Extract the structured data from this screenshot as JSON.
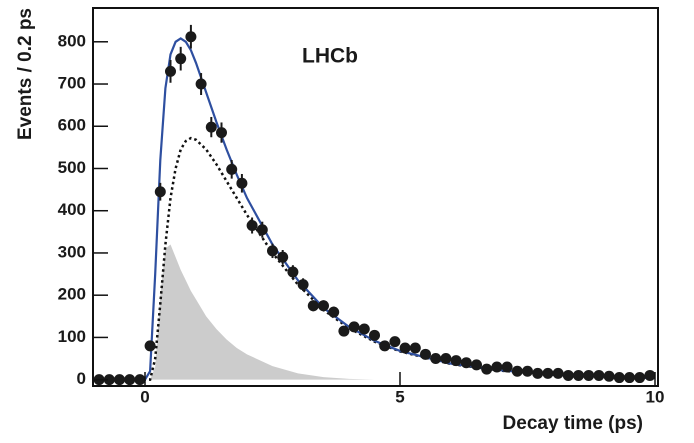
{
  "chart_data": {
    "type": "scatter",
    "annotation": "LHCb",
    "x_label": "Decay time (ps)",
    "y_label": "Events / 0.2 ps",
    "xlim": [
      -1,
      10
    ],
    "xticks": [
      0,
      5,
      10
    ],
    "ylim": [
      -15,
      880
    ],
    "yticks": [
      0,
      100,
      200,
      300,
      400,
      500,
      600,
      700,
      800
    ],
    "points": {
      "color": "#1a1a1a",
      "x": [
        -0.9,
        -0.7,
        -0.5,
        -0.3,
        -0.1,
        0.1,
        0.3,
        0.5,
        0.7,
        0.9,
        1.1,
        1.3,
        1.5,
        1.7,
        1.9,
        2.1,
        2.3,
        2.5,
        2.7,
        2.9,
        3.1,
        3.3,
        3.5,
        3.7,
        3.9,
        4.1,
        4.3,
        4.5,
        4.7,
        4.9,
        5.1,
        5.3,
        5.5,
        5.7,
        5.9,
        6.1,
        6.3,
        6.5,
        6.7,
        6.9,
        7.1,
        7.3,
        7.5,
        7.7,
        7.9,
        8.1,
        8.3,
        8.5,
        8.7,
        8.9,
        9.1,
        9.3,
        9.5,
        9.7,
        9.9
      ],
      "values": [
        0,
        0,
        0,
        0,
        0,
        80,
        445,
        730,
        760,
        812,
        700,
        598,
        585,
        498,
        465,
        365,
        355,
        305,
        290,
        255,
        225,
        175,
        175,
        160,
        115,
        125,
        120,
        105,
        80,
        90,
        75,
        75,
        60,
        50,
        50,
        45,
        40,
        35,
        25,
        30,
        30,
        20,
        20,
        15,
        15,
        15,
        10,
        10,
        10,
        10,
        8,
        5,
        5,
        5,
        10
      ],
      "errors": [
        2,
        2,
        2,
        2,
        2,
        9,
        21,
        27,
        28,
        28,
        26,
        24,
        24,
        22,
        22,
        19,
        19,
        17,
        17,
        16,
        15,
        13,
        13,
        13,
        11,
        11,
        11,
        10,
        9,
        9,
        9,
        9,
        8,
        7,
        7,
        7,
        6,
        6,
        5,
        5,
        5,
        4,
        4,
        4,
        4,
        4,
        3,
        3,
        3,
        3,
        3,
        2,
        2,
        2,
        3
      ]
    },
    "curve_x": [
      -1,
      0,
      0.1,
      0.2,
      0.3,
      0.4,
      0.5,
      0.6,
      0.7,
      0.8,
      0.9,
      1.0,
      1.2,
      1.4,
      1.6,
      1.8,
      2.0,
      2.5,
      3.0,
      3.5,
      4.0,
      4.5,
      5,
      6,
      7,
      8,
      9,
      10
    ],
    "series": [
      {
        "kind": "area",
        "color": "#cccccc",
        "values": [
          0,
          0,
          0,
          30,
          200,
          310,
          320,
          290,
          260,
          235,
          210,
          190,
          150,
          120,
          95,
          75,
          60,
          32,
          15,
          6,
          2,
          0,
          0,
          0,
          0,
          0,
          0,
          0
        ]
      },
      {
        "kind": "dotted",
        "color": "#111111",
        "values": [
          0,
          0,
          0,
          50,
          180,
          320,
          430,
          500,
          545,
          565,
          572,
          568,
          545,
          510,
          470,
          430,
          390,
          300,
          225,
          165,
          122,
          90,
          67,
          37,
          21,
          12,
          7,
          4
        ]
      },
      {
        "kind": "line",
        "color": "#2e4fa0",
        "values": [
          0,
          0,
          20,
          250,
          520,
          690,
          770,
          800,
          808,
          800,
          780,
          750,
          680,
          610,
          545,
          485,
          430,
          320,
          235,
          170,
          125,
          92,
          68,
          38,
          22,
          12,
          7,
          4
        ]
      }
    ]
  }
}
